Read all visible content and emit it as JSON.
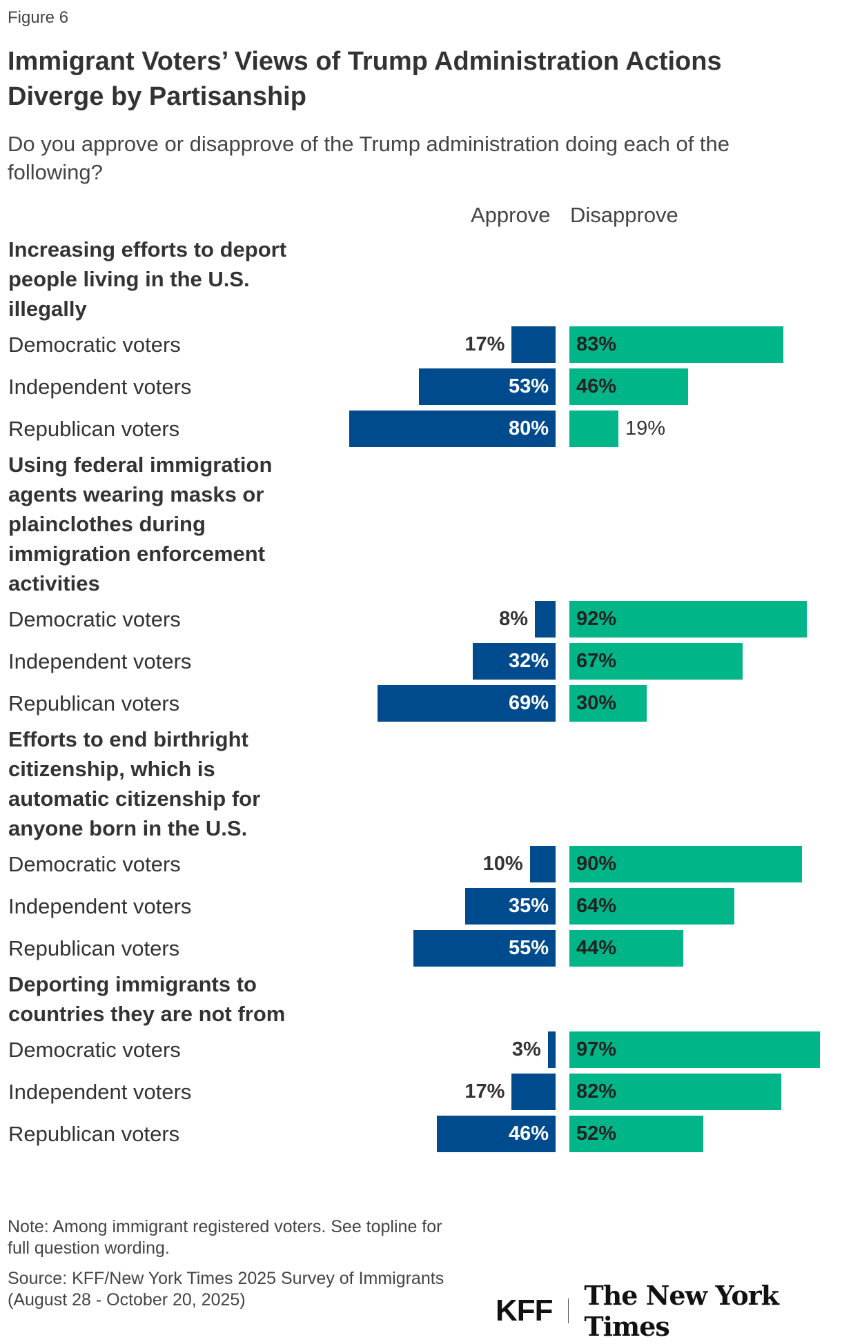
{
  "figure_label": "Figure 6",
  "colors": {
    "approve": "#004B8D",
    "disapprove": "#00B588",
    "text": "#333333"
  },
  "chart_data": {
    "type": "bar",
    "orientation": "horizontal-diverging",
    "title": "Immigrant Voters’ Views of Trump Administration Actions Diverge by Partisanship",
    "subtitle": "Do you approve or disapprove of the Trump administration doing each of the following?",
    "legend": [
      "Approve",
      "Disapprove"
    ],
    "groups": [
      {
        "title": "Increasing efforts to deport people living in the U.S. illegally",
        "rows": [
          {
            "label": "Democratic voters",
            "approve": 17,
            "disapprove": 83
          },
          {
            "label": "Independent voters",
            "approve": 53,
            "disapprove": 46
          },
          {
            "label": "Republican voters",
            "approve": 80,
            "disapprove": 19
          }
        ]
      },
      {
        "title": "Using federal immigration agents wearing masks or plainclothes during immigration enforcement activities",
        "rows": [
          {
            "label": "Democratic voters",
            "approve": 8,
            "disapprove": 92
          },
          {
            "label": "Independent voters",
            "approve": 32,
            "disapprove": 67
          },
          {
            "label": "Republican voters",
            "approve": 69,
            "disapprove": 30
          }
        ]
      },
      {
        "title": "Efforts to end birthright citizenship, which is automatic citizenship for anyone born in the U.S.",
        "rows": [
          {
            "label": "Democratic voters",
            "approve": 10,
            "disapprove": 90
          },
          {
            "label": "Independent voters",
            "approve": 35,
            "disapprove": 64
          },
          {
            "label": "Republican voters",
            "approve": 55,
            "disapprove": 44
          }
        ]
      },
      {
        "title": "Deporting immigrants to countries they are not from",
        "rows": [
          {
            "label": "Democratic voters",
            "approve": 3,
            "disapprove": 97
          },
          {
            "label": "Independent voters",
            "approve": 17,
            "disapprove": 82
          },
          {
            "label": "Republican voters",
            "approve": 46,
            "disapprove": 52
          }
        ]
      }
    ]
  },
  "note": "Note: Among immigrant registered voters. See topline for full question wording.",
  "source": "Source: KFF/New York Times 2025 Survey of Immigrants (August 28 - October 20, 2025)",
  "logos": {
    "kff": "KFF",
    "nyt": "The New York Times"
  }
}
